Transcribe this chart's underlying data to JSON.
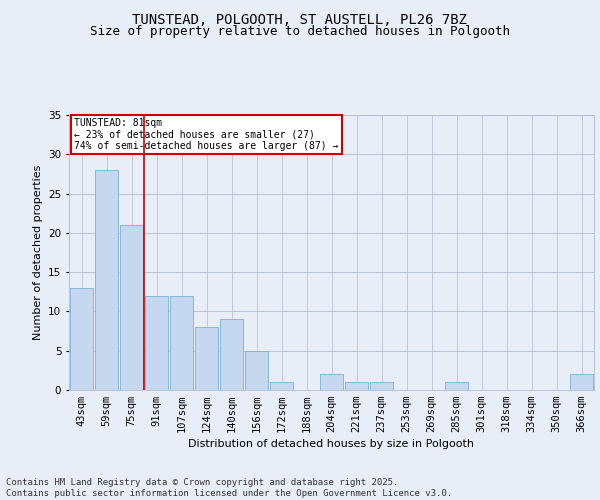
{
  "title": "TUNSTEAD, POLGOOTH, ST AUSTELL, PL26 7BZ",
  "subtitle": "Size of property relative to detached houses in Polgooth",
  "xlabel": "Distribution of detached houses by size in Polgooth",
  "ylabel": "Number of detached properties",
  "categories": [
    "43sqm",
    "59sqm",
    "75sqm",
    "91sqm",
    "107sqm",
    "124sqm",
    "140sqm",
    "156sqm",
    "172sqm",
    "188sqm",
    "204sqm",
    "221sqm",
    "237sqm",
    "253sqm",
    "269sqm",
    "285sqm",
    "301sqm",
    "318sqm",
    "334sqm",
    "350sqm",
    "366sqm"
  ],
  "values": [
    13,
    28,
    21,
    12,
    12,
    8,
    9,
    5,
    1,
    0,
    2,
    1,
    1,
    0,
    0,
    1,
    0,
    0,
    0,
    0,
    2
  ],
  "bar_color": "#c5d8f0",
  "bar_edge_color": "#7ab0d4",
  "vline_x": 2.5,
  "vline_color": "#cc0000",
  "annotation_text": "TUNSTEAD: 81sqm\n← 23% of detached houses are smaller (27)\n74% of semi-detached houses are larger (87) →",
  "annotation_box_color": "#ffffff",
  "annotation_box_edge": "#cc0000",
  "ylim": [
    0,
    35
  ],
  "yticks": [
    0,
    5,
    10,
    15,
    20,
    25,
    30,
    35
  ],
  "bg_color": "#e8eef8",
  "plot_bg_color": "#e8eef8",
  "footer_text": "Contains HM Land Registry data © Crown copyright and database right 2025.\nContains public sector information licensed under the Open Government Licence v3.0.",
  "title_fontsize": 10,
  "subtitle_fontsize": 9,
  "label_fontsize": 8,
  "tick_fontsize": 7.5,
  "footer_fontsize": 6.5
}
